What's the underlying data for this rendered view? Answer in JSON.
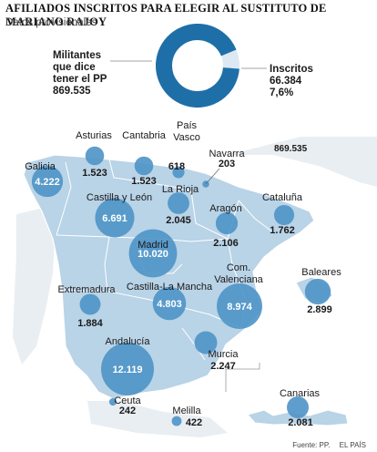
{
  "title": "AFILIADOS INSCRITOS PARA ELEGIR AL SUSTITUTO DE MARIANO RAJOY",
  "subtitle": "Datos provisionales",
  "donut": {
    "militantes_label_line1": "Militantes",
    "militantes_label_line2": "que dice",
    "militantes_label_line3": "tener el PP",
    "militantes_value": "869.535",
    "inscritos_label": "Inscritos",
    "inscritos_value": "66.384",
    "inscritos_pct": "7,6%",
    "inscritos_fraction": 0.076,
    "color_main": "#1e6fa8",
    "color_rest": "#dce9f3"
  },
  "floating_total": "869.535",
  "colors": {
    "land": "#b9d3e7",
    "neighbors": "#e9eef3",
    "bubble": "#4e93c6",
    "border": "#ffffff"
  },
  "regions": [
    {
      "name": "Galicia",
      "value": "4.222",
      "num": 4222
    },
    {
      "name": "Asturias",
      "value": "1.523",
      "num": 1523
    },
    {
      "name": "Cantabria",
      "value": "1.523",
      "num": 1523
    },
    {
      "name_line1": "País",
      "name_line2": "Vasco",
      "value": "618",
      "num": 618
    },
    {
      "name": "Navarra",
      "value": "203",
      "num": 203
    },
    {
      "name": "La Rioja",
      "value": "2.045",
      "num": 2045
    },
    {
      "name": "Castilla y León",
      "value": "6.691",
      "num": 6691
    },
    {
      "name": "Aragón",
      "value": "2.106",
      "num": 2106
    },
    {
      "name": "Cataluña",
      "value": "1.762",
      "num": 1762
    },
    {
      "name": "Madrid",
      "value": "10.020",
      "num": 10020
    },
    {
      "name": "Extremadura",
      "value": "1.884",
      "num": 1884
    },
    {
      "name": "Castilla-La Mancha",
      "value": "4.803",
      "num": 4803
    },
    {
      "name_line1": "Com.",
      "name_line2": "Valenciana",
      "value": "8.974",
      "num": 8974
    },
    {
      "name": "Baleares",
      "value": "2.899",
      "num": 2899
    },
    {
      "name": "Andalucía",
      "value": "12.119",
      "num": 12119
    },
    {
      "name": "Murcia",
      "value": "2.247",
      "num": 2247
    },
    {
      "name": "Ceuta",
      "value": "242",
      "num": 242
    },
    {
      "name": "Melilla",
      "value": "422",
      "num": 422
    },
    {
      "name": "Canarias",
      "value": "2.081",
      "num": 2081
    }
  ],
  "source": "Fuente: PP.",
  "publisher": "EL PAÍS"
}
